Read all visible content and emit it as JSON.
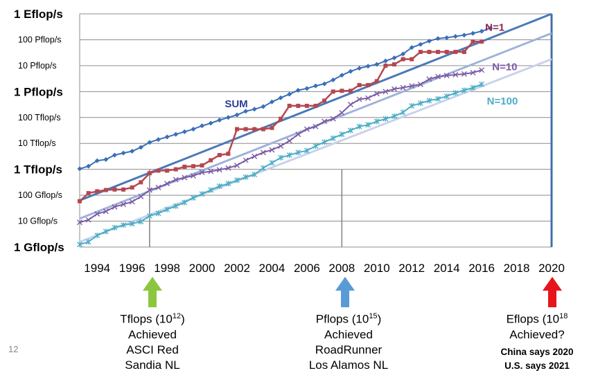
{
  "page_number": "12",
  "chart_data": {
    "type": "line",
    "title": "",
    "xlabel": "",
    "ylabel": "",
    "y_scale": "log",
    "xlim": [
      1993,
      2020
    ],
    "ylim_exponent": [
      9,
      18
    ],
    "x_ticks": [
      1994,
      1996,
      1998,
      2000,
      2002,
      2004,
      2006,
      2008,
      2010,
      2012,
      2014,
      2016,
      2018,
      2020
    ],
    "y_ticks": [
      {
        "label": "1 Eflop/s",
        "exp": 18,
        "major": true
      },
      {
        "label": "100 Pflop/s",
        "exp": 17,
        "major": false
      },
      {
        "label": "10 Pflop/s",
        "exp": 16,
        "major": false
      },
      {
        "label": "1 Pflop/s",
        "exp": 15,
        "major": true
      },
      {
        "label": "100 Tflop/s",
        "exp": 14,
        "major": false
      },
      {
        "label": "10 Tflop/s",
        "exp": 13,
        "major": false
      },
      {
        "label": "1 Tflop/s",
        "exp": 12,
        "major": true
      },
      {
        "label": "100 Gflop/s",
        "exp": 11,
        "major": false
      },
      {
        "label": "10 Gflop/s",
        "exp": 10,
        "major": false
      },
      {
        "label": "1 Gflop/s",
        "exp": 9,
        "major": true
      }
    ],
    "grid": true,
    "vertical_markers": [
      1997,
      2008
    ],
    "target_line_year": 2020,
    "series": [
      {
        "name": "SUM",
        "color": "#3a6fb8",
        "marker": "diamond",
        "points": [
          [
            1993.0,
            12.02
          ],
          [
            1993.5,
            12.12
          ],
          [
            1994.0,
            12.33
          ],
          [
            1994.5,
            12.38
          ],
          [
            1995.0,
            12.55
          ],
          [
            1995.5,
            12.63
          ],
          [
            1996.0,
            12.7
          ],
          [
            1996.5,
            12.85
          ],
          [
            1997.0,
            13.04
          ],
          [
            1997.5,
            13.15
          ],
          [
            1998.0,
            13.25
          ],
          [
            1998.5,
            13.35
          ],
          [
            1999.0,
            13.45
          ],
          [
            1999.5,
            13.55
          ],
          [
            2000.0,
            13.68
          ],
          [
            2000.5,
            13.78
          ],
          [
            2001.0,
            13.9
          ],
          [
            2001.5,
            14.0
          ],
          [
            2002.0,
            14.1
          ],
          [
            2002.5,
            14.24
          ],
          [
            2003.0,
            14.32
          ],
          [
            2003.5,
            14.42
          ],
          [
            2004.0,
            14.6
          ],
          [
            2004.5,
            14.76
          ],
          [
            2005.0,
            14.9
          ],
          [
            2005.5,
            15.05
          ],
          [
            2006.0,
            15.12
          ],
          [
            2006.5,
            15.22
          ],
          [
            2007.0,
            15.3
          ],
          [
            2007.5,
            15.45
          ],
          [
            2008.0,
            15.63
          ],
          [
            2008.5,
            15.78
          ],
          [
            2009.0,
            15.9
          ],
          [
            2009.5,
            15.98
          ],
          [
            2010.0,
            16.05
          ],
          [
            2010.5,
            16.18
          ],
          [
            2011.0,
            16.3
          ],
          [
            2011.5,
            16.45
          ],
          [
            2012.0,
            16.7
          ],
          [
            2012.5,
            16.82
          ],
          [
            2013.0,
            16.95
          ],
          [
            2013.5,
            17.05
          ],
          [
            2014.0,
            17.08
          ],
          [
            2014.5,
            17.13
          ],
          [
            2015.0,
            17.18
          ],
          [
            2015.5,
            17.25
          ],
          [
            2016.0,
            17.33
          ],
          [
            2016.5,
            17.45
          ]
        ]
      },
      {
        "name": "N=1",
        "color": "#b5474f",
        "marker": "square",
        "points": [
          [
            1993.0,
            10.77
          ],
          [
            1993.5,
            11.08
          ],
          [
            1994.0,
            11.15
          ],
          [
            1994.5,
            11.2
          ],
          [
            1995.0,
            11.22
          ],
          [
            1995.5,
            11.22
          ],
          [
            1996.0,
            11.3
          ],
          [
            1996.5,
            11.5
          ],
          [
            1997.0,
            11.85
          ],
          [
            1997.5,
            11.95
          ],
          [
            1998.0,
            11.95
          ],
          [
            1998.5,
            12.0
          ],
          [
            1999.0,
            12.1
          ],
          [
            1999.5,
            12.12
          ],
          [
            2000.0,
            12.15
          ],
          [
            2000.5,
            12.35
          ],
          [
            2001.0,
            12.55
          ],
          [
            2001.5,
            12.6
          ],
          [
            2002.0,
            13.55
          ],
          [
            2002.5,
            13.55
          ],
          [
            2003.0,
            13.55
          ],
          [
            2003.5,
            13.55
          ],
          [
            2004.0,
            13.6
          ],
          [
            2004.5,
            13.95
          ],
          [
            2005.0,
            14.45
          ],
          [
            2005.5,
            14.45
          ],
          [
            2006.0,
            14.45
          ],
          [
            2006.5,
            14.45
          ],
          [
            2007.0,
            14.65
          ],
          [
            2007.5,
            15.0
          ],
          [
            2008.0,
            15.03
          ],
          [
            2008.5,
            15.03
          ],
          [
            2009.0,
            15.25
          ],
          [
            2009.5,
            15.25
          ],
          [
            2010.0,
            15.4
          ],
          [
            2010.5,
            16.0
          ],
          [
            2011.0,
            16.05
          ],
          [
            2011.5,
            16.25
          ],
          [
            2012.0,
            16.25
          ],
          [
            2012.5,
            16.53
          ],
          [
            2013.0,
            16.53
          ],
          [
            2013.5,
            16.53
          ],
          [
            2014.0,
            16.53
          ],
          [
            2014.5,
            16.53
          ],
          [
            2015.0,
            16.53
          ],
          [
            2015.5,
            16.93
          ],
          [
            2016.0,
            16.93
          ]
        ]
      },
      {
        "name": "N=10",
        "color": "#7a5ba6",
        "marker": "x",
        "points": [
          [
            1993.0,
            9.95
          ],
          [
            1993.5,
            10.05
          ],
          [
            1994.0,
            10.28
          ],
          [
            1994.5,
            10.38
          ],
          [
            1995.0,
            10.55
          ],
          [
            1995.5,
            10.65
          ],
          [
            1996.0,
            10.75
          ],
          [
            1996.5,
            10.95
          ],
          [
            1997.0,
            11.2
          ],
          [
            1997.5,
            11.3
          ],
          [
            1998.0,
            11.45
          ],
          [
            1998.5,
            11.6
          ],
          [
            1999.0,
            11.68
          ],
          [
            1999.5,
            11.75
          ],
          [
            2000.0,
            11.88
          ],
          [
            2000.5,
            11.92
          ],
          [
            2001.0,
            11.98
          ],
          [
            2001.5,
            12.05
          ],
          [
            2002.0,
            12.15
          ],
          [
            2002.5,
            12.35
          ],
          [
            2003.0,
            12.5
          ],
          [
            2003.5,
            12.65
          ],
          [
            2004.0,
            12.75
          ],
          [
            2004.5,
            12.9
          ],
          [
            2005.0,
            13.1
          ],
          [
            2005.5,
            13.35
          ],
          [
            2006.0,
            13.55
          ],
          [
            2006.5,
            13.65
          ],
          [
            2007.0,
            13.85
          ],
          [
            2007.5,
            13.95
          ],
          [
            2008.0,
            14.18
          ],
          [
            2008.5,
            14.5
          ],
          [
            2009.0,
            14.7
          ],
          [
            2009.5,
            14.75
          ],
          [
            2010.0,
            14.92
          ],
          [
            2010.5,
            15.0
          ],
          [
            2011.0,
            15.1
          ],
          [
            2011.5,
            15.15
          ],
          [
            2012.0,
            15.22
          ],
          [
            2012.5,
            15.28
          ],
          [
            2013.0,
            15.48
          ],
          [
            2013.5,
            15.58
          ],
          [
            2014.0,
            15.62
          ],
          [
            2014.5,
            15.65
          ],
          [
            2015.0,
            15.68
          ],
          [
            2015.5,
            15.73
          ],
          [
            2016.0,
            15.83
          ]
        ]
      },
      {
        "name": "N=100",
        "color": "#4bacc6",
        "marker": "asterisk",
        "points": [
          [
            1993.0,
            9.1
          ],
          [
            1993.5,
            9.2
          ],
          [
            1994.0,
            9.45
          ],
          [
            1994.5,
            9.6
          ],
          [
            1995.0,
            9.75
          ],
          [
            1995.5,
            9.85
          ],
          [
            1996.0,
            9.9
          ],
          [
            1996.5,
            9.98
          ],
          [
            1997.0,
            10.2
          ],
          [
            1997.5,
            10.3
          ],
          [
            1998.0,
            10.45
          ],
          [
            1998.5,
            10.58
          ],
          [
            1999.0,
            10.72
          ],
          [
            1999.5,
            10.9
          ],
          [
            2000.0,
            11.05
          ],
          [
            2000.5,
            11.2
          ],
          [
            2001.0,
            11.35
          ],
          [
            2001.5,
            11.45
          ],
          [
            2002.0,
            11.58
          ],
          [
            2002.5,
            11.7
          ],
          [
            2003.0,
            11.8
          ],
          [
            2003.5,
            12.05
          ],
          [
            2004.0,
            12.25
          ],
          [
            2004.5,
            12.45
          ],
          [
            2005.0,
            12.55
          ],
          [
            2005.5,
            12.65
          ],
          [
            2006.0,
            12.72
          ],
          [
            2006.5,
            12.9
          ],
          [
            2007.0,
            13.05
          ],
          [
            2007.5,
            13.2
          ],
          [
            2008.0,
            13.35
          ],
          [
            2008.5,
            13.5
          ],
          [
            2009.0,
            13.65
          ],
          [
            2009.5,
            13.72
          ],
          [
            2010.0,
            13.85
          ],
          [
            2010.5,
            13.95
          ],
          [
            2011.0,
            14.05
          ],
          [
            2011.5,
            14.2
          ],
          [
            2012.0,
            14.45
          ],
          [
            2012.5,
            14.55
          ],
          [
            2013.0,
            14.65
          ],
          [
            2013.5,
            14.72
          ],
          [
            2014.0,
            14.82
          ],
          [
            2014.5,
            14.95
          ],
          [
            2015.0,
            15.05
          ],
          [
            2015.5,
            15.15
          ],
          [
            2016.0,
            15.28
          ]
        ]
      }
    ],
    "trend_lines": [
      {
        "name": "N=1 trend",
        "color": "#4a78b8",
        "from": [
          1993.0,
          10.8
        ],
        "to": [
          2020.0,
          18.0
        ]
      },
      {
        "name": "N=10 trend",
        "color": "#9fb3d8",
        "from": [
          1993.0,
          10.1
        ],
        "to": [
          2020.0,
          17.25
        ]
      },
      {
        "name": "N=100 trend",
        "color": "#c7d3ea",
        "from": [
          1993.0,
          9.2
        ],
        "to": [
          2020.0,
          16.25
        ]
      }
    ],
    "annotations": [
      {
        "text": "SUM",
        "color": "#2e3d99",
        "at": [
          2001.3,
          14.4
        ]
      },
      {
        "text": "N=1",
        "color": "#8a2a5a",
        "at": [
          2016.2,
          17.35
        ]
      },
      {
        "text": "N=10",
        "color": "#7a5ba6",
        "at": [
          2016.6,
          15.83
        ]
      },
      {
        "text": "N=100",
        "color": "#4bacc6",
        "at": [
          2016.3,
          14.5
        ]
      }
    ]
  },
  "milestones": [
    {
      "arrow_color": "#8cc63f",
      "lines": [
        "Tflops (10",
        "12",
        ")",
        "Achieved",
        "ASCI Red",
        "Sandia NL"
      ]
    },
    {
      "arrow_color": "#5b9bd5",
      "lines": [
        "Pflops (10",
        "15",
        ")",
        "Achieved",
        "RoadRunner",
        "Los Alamos NL"
      ]
    },
    {
      "arrow_color": "#e8141b",
      "lines": [
        "Eflops (10",
        "18",
        "",
        "Achieved?",
        "China says 2020",
        "U.S. says 2021"
      ]
    }
  ]
}
